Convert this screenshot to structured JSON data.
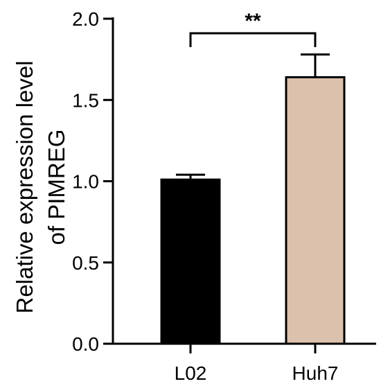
{
  "chart_data": {
    "type": "bar",
    "categories": [
      "L02",
      "Huh7"
    ],
    "values": [
      1.01,
      1.64
    ],
    "errors": [
      0.03,
      0.14
    ],
    "colors": [
      "#000000",
      "#dcc1ad"
    ],
    "ylabel": [
      "Relative expression level",
      "of PIMREG"
    ],
    "ylim": [
      0,
      2.0
    ],
    "yticks": [
      0.0,
      0.5,
      1.0,
      1.5,
      2.0
    ],
    "ytick_labels": [
      "0.0",
      "0.5",
      "1.0",
      "1.5",
      "2.0"
    ],
    "significance": {
      "label": "**",
      "between": [
        "L02",
        "Huh7"
      ]
    },
    "grid": false,
    "legend": "none"
  }
}
